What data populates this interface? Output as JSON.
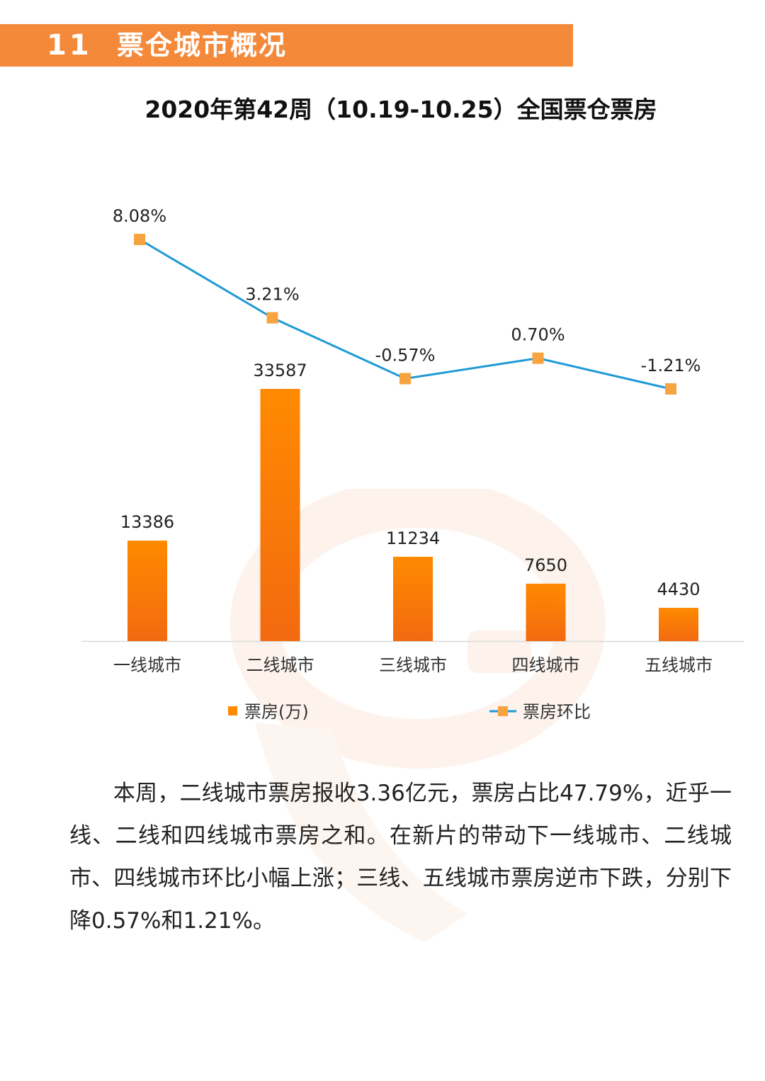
{
  "section": {
    "number": "11",
    "title": "票仓城市概况"
  },
  "colors": {
    "header_bg": "#f5893a",
    "bar_top": "#ff8a00",
    "bar_bottom": "#f26a10",
    "line": "#1f9ad6",
    "marker": "#f7a440"
  },
  "chart_data": {
    "type": "bar",
    "title": "2020年第42周（10.19-10.25）全国票仓票房",
    "categories": [
      "一线城市",
      "二线城市",
      "三线城市",
      "四线城市",
      "五线城市"
    ],
    "series": [
      {
        "name": "票房(万)",
        "type": "bar",
        "values": [
          13386,
          33587,
          11234,
          7650,
          4430
        ],
        "labels": [
          "13386",
          "33587",
          "11234",
          "7650",
          "4430"
        ]
      },
      {
        "name": "票房环比",
        "type": "line",
        "values": [
          8.08,
          3.21,
          -0.57,
          0.7,
          -1.21
        ],
        "labels": [
          "8.08%",
          "3.21%",
          "-0.57%",
          "0.70%",
          "-1.21%"
        ]
      }
    ],
    "legend": "bottom",
    "grid": false
  },
  "paragraph": "本周，二线城市票房报收3.36亿元，票房占比47.79%，近乎一线、二线和四线城市票房之和。在新片的带动下一线城市、二线城市、四线城市环比小幅上涨；三线、五线城市票房逆市下跌，分别下降0.57%和1.21%。"
}
